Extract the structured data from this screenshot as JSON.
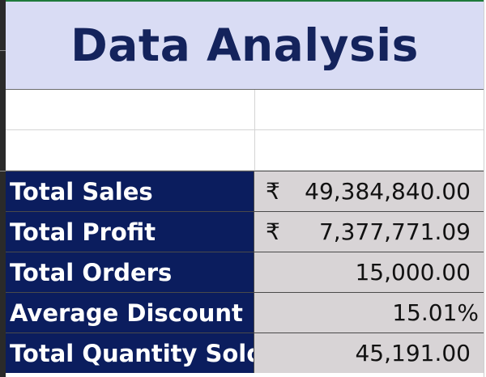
{
  "header": {
    "title": "Data Analysis"
  },
  "rows": [
    {
      "label": "Total Sales",
      "currency": "₹",
      "value": "49,384,840.00"
    },
    {
      "label": "Total Profit",
      "currency": "₹",
      "value": "7,377,771.09"
    },
    {
      "label": "Total Orders",
      "currency": "",
      "value": "15,000.00"
    },
    {
      "label": "Average Discount",
      "currency": "",
      "value": "15.01%"
    },
    {
      "label": "Total Quantity Sold",
      "currency": "",
      "value": "45,191.00"
    }
  ],
  "colors": {
    "header_bg": "#d9dcf4",
    "header_text": "#14235c",
    "label_bg": "#0b1d5e",
    "value_bg": "#d8d4d6"
  }
}
